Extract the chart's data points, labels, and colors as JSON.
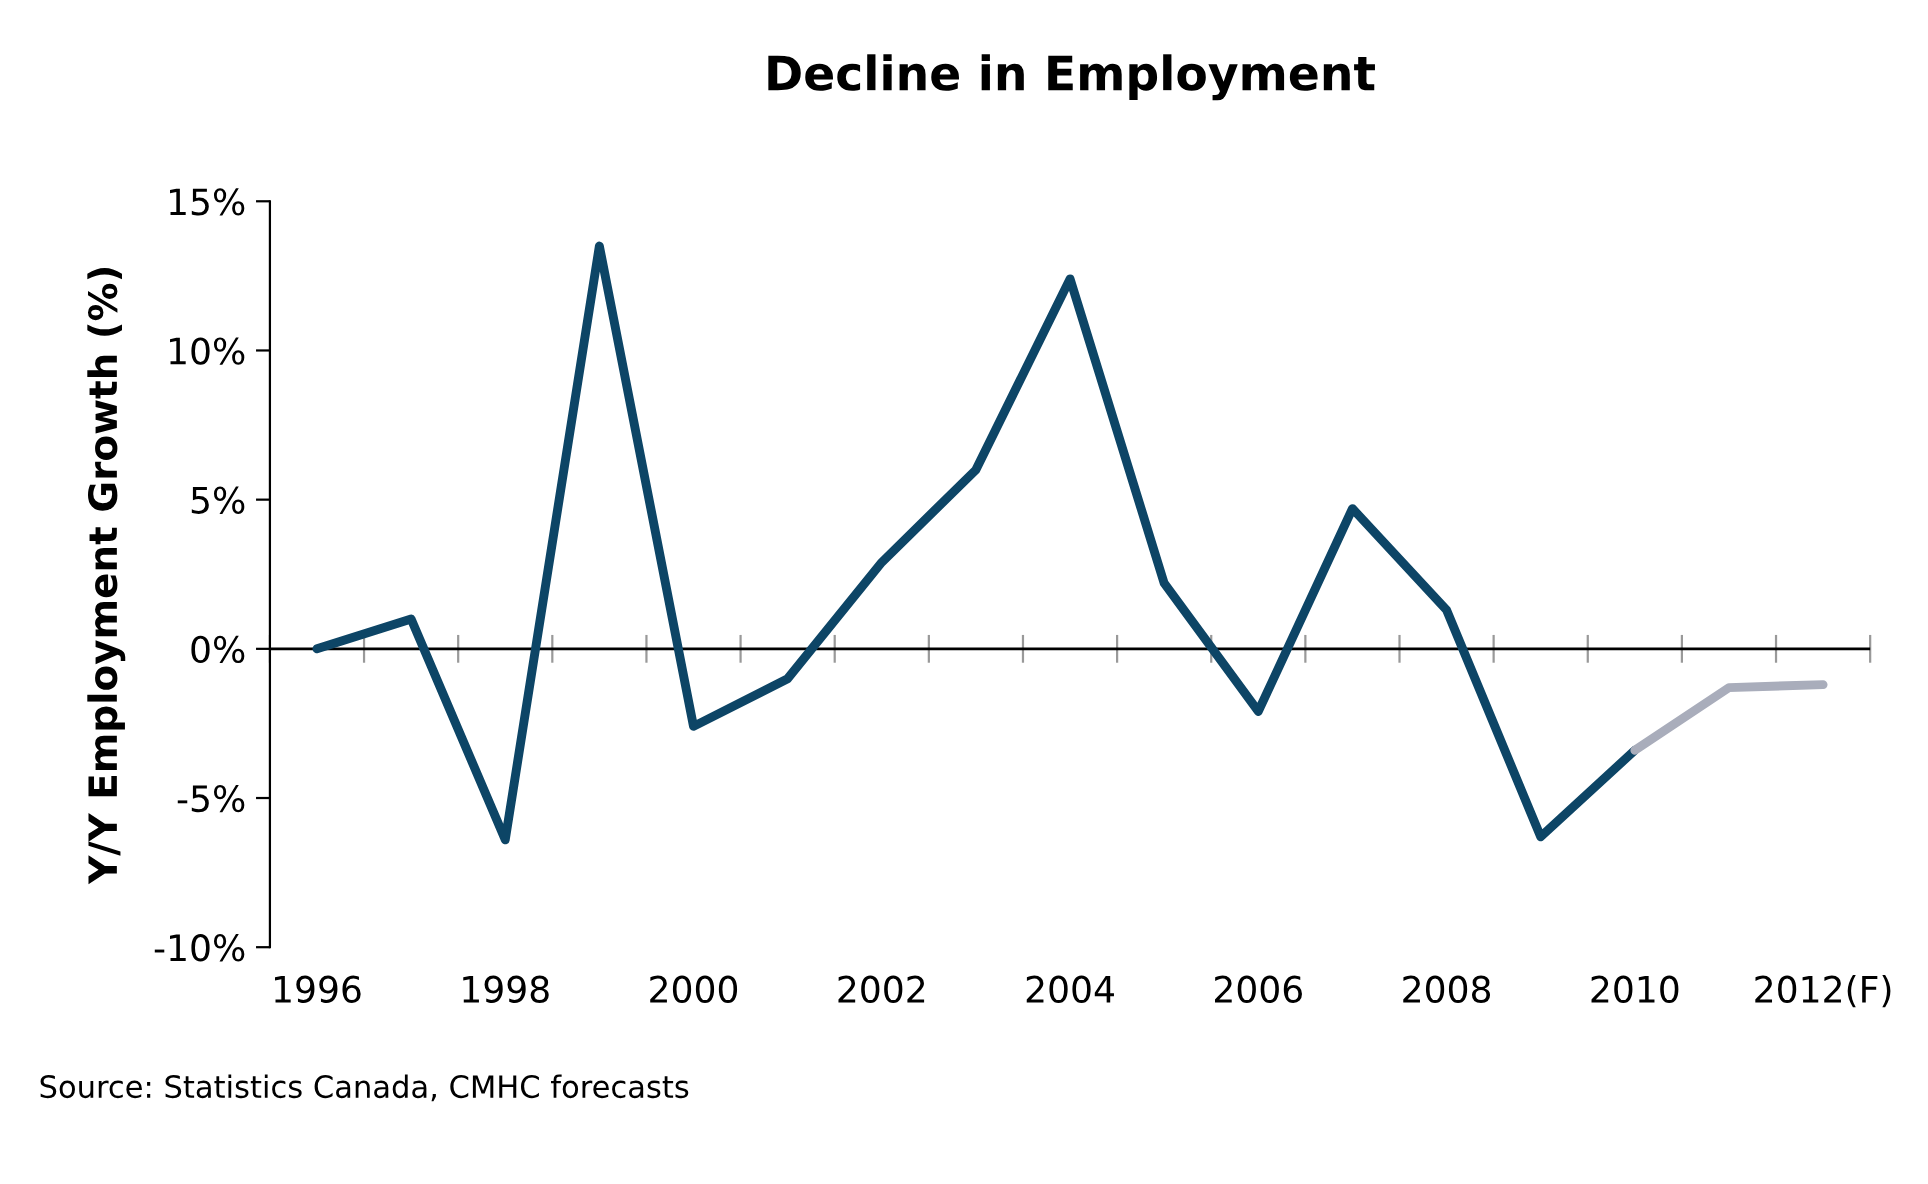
{
  "chart_data": {
    "type": "line",
    "title": "Decline in Employment",
    "ylabel": "Y/Y Employment Growth (%)",
    "categories": [
      "1996",
      null,
      "1998",
      null,
      "2000",
      null,
      "2002",
      null,
      "2004",
      null,
      "2006",
      null,
      "2008",
      null,
      "2010",
      null,
      "2012(F)"
    ],
    "series": [
      {
        "color": "#0d4566",
        "values": [
          0,
          1.0,
          -6.4,
          13.5,
          -2.6,
          -1.0,
          2.9,
          6.0,
          12.4,
          2.2,
          -2.1,
          4.7,
          1.3,
          -6.3,
          -3.4,
          null,
          null
        ]
      },
      {
        "color": "#a9adbb",
        "values": [
          null,
          null,
          null,
          null,
          null,
          null,
          null,
          null,
          null,
          null,
          null,
          null,
          null,
          null,
          -3.4,
          -1.3,
          -1.2
        ]
      }
    ],
    "ylim": [
      -10,
      15
    ],
    "yticks": [
      {
        "value": -10,
        "label": "-10%"
      },
      {
        "value": -5,
        "label": "-5%"
      },
      {
        "value": 0,
        "label": "0%"
      },
      {
        "value": 5,
        "label": "5%"
      },
      {
        "value": 10,
        "label": "10%"
      },
      {
        "value": 15,
        "label": "15%"
      }
    ],
    "ref_lines": [
      {
        "axis": "y",
        "value": 0,
        "color": "#000000"
      }
    ],
    "grid": false,
    "marker": "none",
    "line_style": "solid",
    "annotations": [
      "Source: Statistics Canada, CMHC forecasts"
    ]
  }
}
